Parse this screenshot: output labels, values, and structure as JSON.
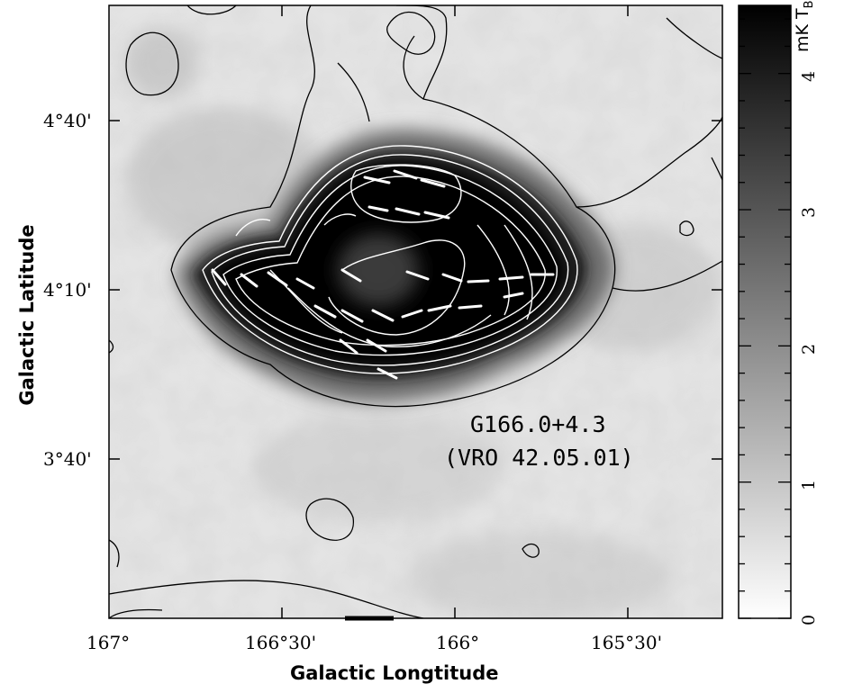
{
  "figure": {
    "source_name": "G166.0+4.3",
    "source_alias": "(VRO 42.05.01)",
    "x_axis_title": "Galactic Longtitude",
    "y_axis_title": "Galactic Latitude",
    "x_ticks": [
      "167°",
      "166°30'",
      "166°",
      "165°30'"
    ],
    "y_ticks": [
      "4°40'",
      "4°10'",
      "3°40'"
    ],
    "colorbar_unit": "mK T",
    "colorbar_unit_sub": "B",
    "colorbar_ticks": [
      "0",
      "1",
      "2",
      "3",
      "4"
    ],
    "colorbar_range": [
      0,
      4.5
    ],
    "colormap": {
      "low": "#ffffff",
      "high": "#000000"
    },
    "contour_color_outer": "#000000",
    "contour_color_inner": "#ffffff",
    "polarization_vector_color": "#ffffff"
  }
}
